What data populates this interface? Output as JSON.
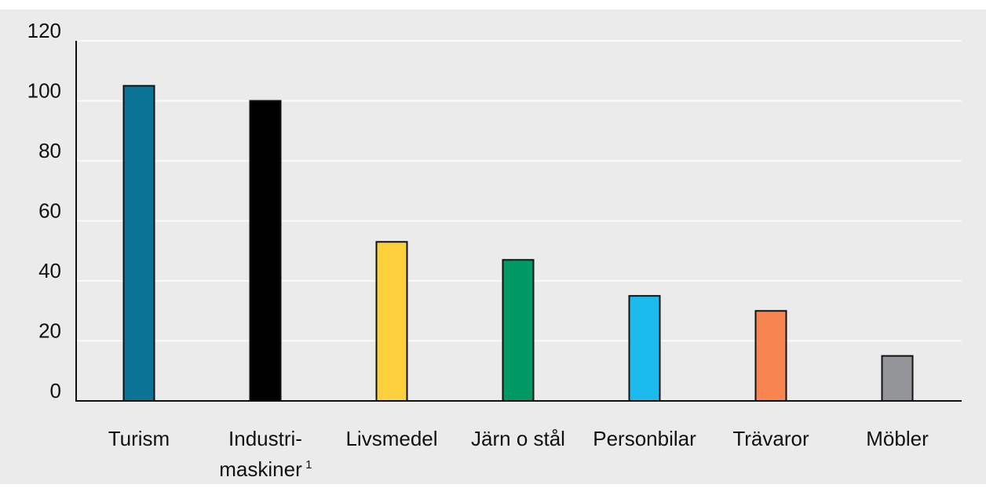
{
  "chart_data": {
    "type": "bar",
    "categories": [
      {
        "line1": "Turism",
        "line2": "",
        "sup": ""
      },
      {
        "line1": "Industri-",
        "line2": "maskiner",
        "sup": "1"
      },
      {
        "line1": "Livsmedel",
        "line2": "",
        "sup": ""
      },
      {
        "line1": "Järn o stål",
        "line2": "",
        "sup": ""
      },
      {
        "line1": "Personbilar",
        "line2": "",
        "sup": ""
      },
      {
        "line1": "Trävaror",
        "line2": "",
        "sup": ""
      },
      {
        "line1": "Möbler",
        "line2": "",
        "sup": ""
      }
    ],
    "values": [
      105,
      100,
      53,
      47,
      35,
      30,
      15
    ],
    "colors": [
      "#0b7495",
      "#000000",
      "#fdd13e",
      "#009966",
      "#1bbbee",
      "#f68550",
      "#939598"
    ],
    "yticks": [
      "0",
      "20",
      "40",
      "60",
      "80",
      "100",
      "120"
    ],
    "ylim": [
      0,
      120
    ],
    "grid": true,
    "legend": "none",
    "background_color": "#ebebeb",
    "title": "",
    "xlabel": "",
    "ylabel": ""
  }
}
